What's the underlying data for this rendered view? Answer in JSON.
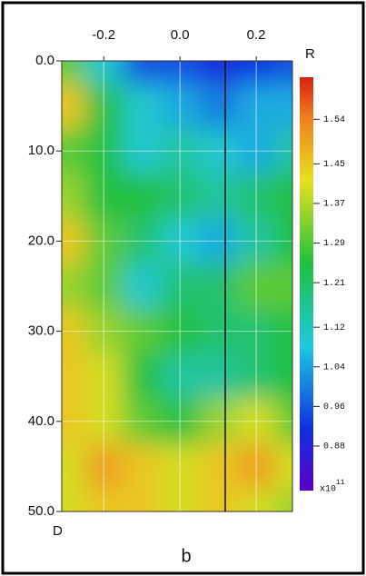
{
  "chart_data": {
    "type": "contour",
    "x_label": "R",
    "y_label": "D",
    "caption": "b",
    "xlim": [
      -0.31,
      0.295
    ],
    "ylim": [
      0,
      50
    ],
    "xticks": [
      -0.2,
      {
        "value": 0,
        "label": "0.0"
      },
      0.2
    ],
    "yticks": [
      {
        "value": 0,
        "label": "0.0"
      },
      {
        "value": 10,
        "label": "10.0"
      },
      {
        "value": 20,
        "label": "20.0"
      },
      {
        "value": 30,
        "label": "30.0"
      },
      {
        "value": 40,
        "label": "40.0"
      },
      {
        "value": 50,
        "label": "50.0"
      }
    ],
    "x": [
      -0.3,
      -0.2,
      -0.1,
      0,
      0.1,
      0.2,
      0.3
    ],
    "y": [
      0,
      5,
      10,
      15,
      20,
      25,
      30,
      35,
      40,
      45,
      50
    ],
    "z": [
      [
        1.3,
        1.1,
        0.95,
        0.95,
        0.9,
        0.92,
        0.95
      ],
      [
        1.45,
        1.25,
        1.1,
        1.05,
        1.0,
        1.05,
        1.05
      ],
      [
        1.3,
        1.25,
        1.1,
        1.15,
        1.1,
        1.05,
        1.15
      ],
      [
        1.35,
        1.25,
        1.25,
        1.2,
        1.15,
        1.2,
        1.25
      ],
      [
        1.45,
        1.3,
        1.2,
        1.1,
        1.05,
        1.15,
        1.25
      ],
      [
        1.35,
        1.3,
        1.1,
        1.2,
        1.2,
        1.3,
        1.3
      ],
      [
        1.45,
        1.35,
        1.3,
        1.25,
        1.2,
        1.2,
        1.25
      ],
      [
        1.45,
        1.4,
        1.25,
        1.15,
        1.15,
        1.2,
        1.25
      ],
      [
        1.45,
        1.4,
        1.3,
        1.25,
        1.35,
        1.4,
        1.3
      ],
      [
        1.4,
        1.5,
        1.45,
        1.4,
        1.45,
        1.5,
        1.4
      ],
      [
        1.4,
        1.45,
        1.45,
        1.4,
        1.45,
        1.4,
        1.35
      ]
    ],
    "colorbar": {
      "lim": [
        0.79,
        1.625
      ],
      "ticks": [
        1.54,
        1.45,
        1.37,
        1.29,
        1.21,
        1.12,
        1.04,
        0.96,
        0.88
      ],
      "label": "x10",
      "exponent": "11"
    }
  }
}
